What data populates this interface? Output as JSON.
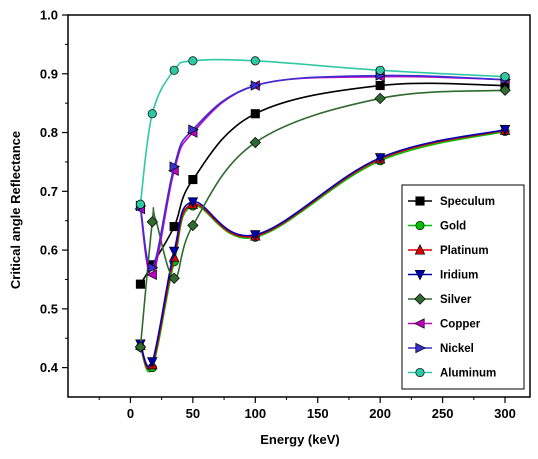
{
  "chart_data": {
    "type": "line",
    "title": "",
    "xlabel": "Energy (keV)",
    "ylabel": "Critical angle Reflectance",
    "xlim": [
      -50,
      320
    ],
    "ylim": [
      0.35,
      1.0
    ],
    "xticks": [
      "0",
      "50",
      "100",
      "150",
      "200",
      "250",
      "300"
    ],
    "yticks": [
      "0.4",
      "0.5",
      "0.6",
      "0.7",
      "0.8",
      "0.9",
      "1.0"
    ],
    "legend_position": "bottom-right",
    "grid": false,
    "series": [
      {
        "name": "Speculum",
        "color": "#000000",
        "marker": "square",
        "x": [
          8,
          17.5,
          35,
          50,
          100,
          200,
          300
        ],
        "y": [
          0.542,
          0.575,
          0.64,
          0.72,
          0.832,
          0.88,
          0.88
        ]
      },
      {
        "name": "Gold",
        "color": "#00c000",
        "marker": "circle",
        "x": [
          8,
          17.5,
          35,
          50,
          100,
          200,
          300
        ],
        "y": [
          0.435,
          0.4,
          0.58,
          0.675,
          0.622,
          0.752,
          0.802
        ]
      },
      {
        "name": "Platinum",
        "color": "#e00000",
        "marker": "triangle-up",
        "x": [
          8,
          17.5,
          35,
          50,
          100,
          200,
          300
        ],
        "y": [
          0.438,
          0.405,
          0.588,
          0.678,
          0.624,
          0.755,
          0.804
        ]
      },
      {
        "name": "Iridium",
        "color": "#0000b0",
        "marker": "triangle-down",
        "x": [
          8,
          17.5,
          35,
          50,
          100,
          200,
          300
        ],
        "y": [
          0.44,
          0.41,
          0.598,
          0.682,
          0.626,
          0.757,
          0.805
        ]
      },
      {
        "name": "Silver",
        "color": "#2f6b2f",
        "marker": "diamond",
        "x": [
          8,
          17.5,
          20,
          35,
          50,
          100,
          200,
          300
        ],
        "y": [
          0.435,
          0.648,
          0.653,
          0.552,
          0.642,
          0.783,
          0.858,
          0.872
        ]
      },
      {
        "name": "Copper",
        "color": "#c000c0",
        "marker": "triangle-left",
        "x": [
          8,
          17.5,
          35,
          50,
          100,
          200,
          300
        ],
        "y": [
          0.67,
          0.558,
          0.735,
          0.8,
          0.88,
          0.895,
          0.89
        ]
      },
      {
        "name": "Nickel",
        "color": "#3a2fd0",
        "marker": "triangle-right",
        "x": [
          8,
          17.5,
          35,
          50,
          100,
          200,
          300
        ],
        "y": [
          0.675,
          0.57,
          0.742,
          0.805,
          0.88,
          0.897,
          0.89
        ]
      },
      {
        "name": "Aluminum",
        "color": "#2ec9a4",
        "marker": "circle",
        "x": [
          8,
          17.5,
          35,
          50,
          100,
          200,
          300
        ],
        "y": [
          0.678,
          0.832,
          0.906,
          0.922,
          0.922,
          0.906,
          0.895
        ]
      }
    ]
  }
}
